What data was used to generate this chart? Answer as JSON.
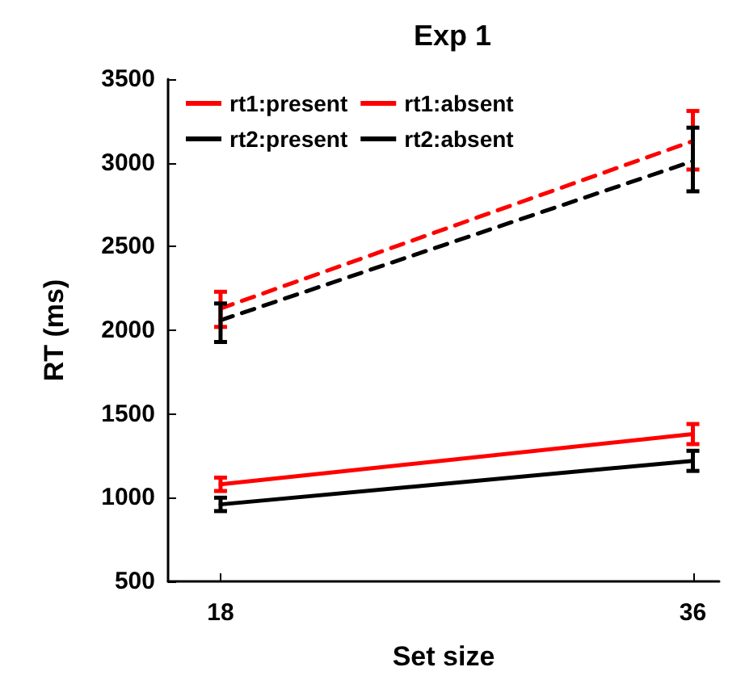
{
  "chart_data": {
    "type": "line",
    "title": "Exp 1",
    "xlabel": "Set size",
    "ylabel": "RT (ms)",
    "x": [
      18,
      36
    ],
    "xlim": [
      16,
      37
    ],
    "xticks": [
      18,
      36
    ],
    "ylim": [
      500,
      3500
    ],
    "yticks": [
      500,
      1000,
      1500,
      2000,
      2500,
      3000,
      3500
    ],
    "grid": false,
    "legend": "top left",
    "marker": "none",
    "series": [
      {
        "name": "rt1:present",
        "color": "#ff0000",
        "line_style": "solid",
        "values": [
          1080,
          1380
        ],
        "errors": [
          40,
          60
        ]
      },
      {
        "name": "rt1:absent",
        "color": "#ff0000",
        "line_style": "dashed",
        "values": [
          2130,
          3130
        ],
        "errors": [
          [
            2020,
            2230
          ],
          [
            2960,
            3310
          ]
        ]
      },
      {
        "name": "rt2:present",
        "color": "#000000",
        "line_style": "solid",
        "values": [
          960,
          1220
        ],
        "errors": [
          40,
          60
        ]
      },
      {
        "name": "rt2:absent",
        "color": "#000000",
        "line_style": "dashed",
        "values": [
          2060,
          3010
        ],
        "errors": [
          [
            1930,
            2160
          ],
          [
            2830,
            3210
          ]
        ]
      }
    ]
  }
}
